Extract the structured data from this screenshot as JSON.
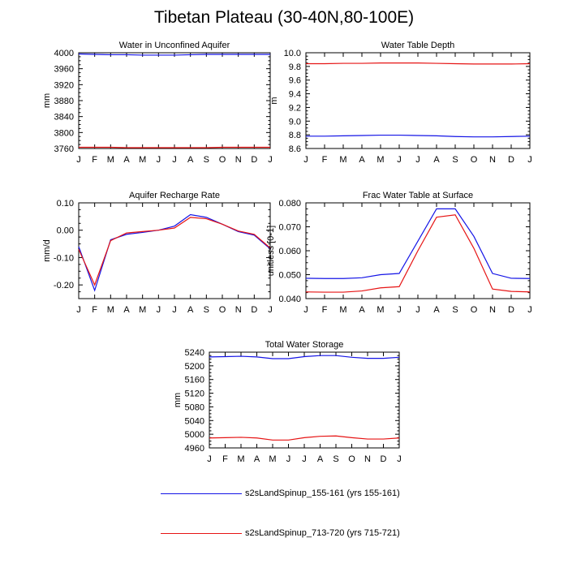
{
  "figure": {
    "title": "Tibetan Plateau (30-40N,80-100E)"
  },
  "colors": {
    "series_1": "#1414e6",
    "series_2": "#e61414",
    "axis": "#000000"
  },
  "legend": [
    {
      "label": "s2sLandSpinup_155-161 (yrs 155-161)",
      "color": "#1414e6"
    },
    {
      "label": "s2sLandSpinup_713-720 (yrs 715-721)",
      "color": "#e61414"
    }
  ],
  "chart_data": [
    {
      "type": "line",
      "title": "Water in Unconfined Aquifer",
      "ylabel": "mm",
      "categories": [
        "J",
        "F",
        "M",
        "A",
        "M",
        "J",
        "J",
        "A",
        "S",
        "O",
        "N",
        "D",
        "J"
      ],
      "ylim": [
        3760,
        4000
      ],
      "yticks": [
        "3760",
        "3800",
        "3840",
        "3880",
        "3920",
        "3960",
        "4000"
      ],
      "series": [
        {
          "name": "s2sLandSpinup_155-161 (yrs 155-161)",
          "color": "#1414e6",
          "values": [
            3997,
            3996,
            3995,
            3995,
            3994,
            3994,
            3994,
            3995,
            3996,
            3996,
            3996,
            3996,
            3996
          ]
        },
        {
          "name": "s2sLandSpinup_713-720 (yrs 715-721)",
          "color": "#e61414",
          "values": [
            3763,
            3763,
            3763,
            3762,
            3762,
            3762,
            3762,
            3762,
            3762,
            3763,
            3763,
            3763,
            3763
          ]
        }
      ]
    },
    {
      "type": "line",
      "title": "Water Table Depth",
      "ylabel": "m",
      "categories": [
        "J",
        "F",
        "M",
        "A",
        "M",
        "J",
        "J",
        "A",
        "S",
        "O",
        "N",
        "D",
        "J"
      ],
      "ylim": [
        8.6,
        10.0
      ],
      "yticks": [
        "8.6",
        "8.8",
        "9.0",
        "9.2",
        "9.4",
        "9.6",
        "9.8",
        "10.0"
      ],
      "series": [
        {
          "name": "s2sLandSpinup_155-161 (yrs 155-161)",
          "color": "#1414e6",
          "values": [
            8.78,
            8.78,
            8.785,
            8.79,
            8.795,
            8.795,
            8.79,
            8.785,
            8.775,
            8.77,
            8.77,
            8.775,
            8.78
          ]
        },
        {
          "name": "s2sLandSpinup_713-720 (yrs 715-721)",
          "color": "#e61414",
          "values": [
            9.84,
            9.84,
            9.845,
            9.845,
            9.85,
            9.85,
            9.85,
            9.845,
            9.84,
            9.835,
            9.835,
            9.835,
            9.84
          ]
        }
      ]
    },
    {
      "type": "line",
      "title": "Aquifer Recharge Rate",
      "ylabel": "mm/d",
      "categories": [
        "J",
        "F",
        "M",
        "A",
        "M",
        "J",
        "J",
        "A",
        "S",
        "O",
        "N",
        "D",
        "J"
      ],
      "ylim": [
        -0.25,
        0.1
      ],
      "yticks": [
        "-0.20",
        "-0.10",
        "0.00",
        "0.10"
      ],
      "ytick_values": [
        -0.2,
        -0.1,
        0.0,
        0.1
      ],
      "series": [
        {
          "name": "s2sLandSpinup_155-161 (yrs 155-161)",
          "color": "#1414e6",
          "values": [
            -0.06,
            -0.22,
            -0.035,
            -0.015,
            -0.008,
            0.0,
            0.015,
            0.057,
            0.047,
            0.022,
            -0.005,
            -0.018,
            -0.068
          ]
        },
        {
          "name": "s2sLandSpinup_713-720 (yrs 715-721)",
          "color": "#e61414",
          "values": [
            -0.07,
            -0.2,
            -0.038,
            -0.01,
            -0.005,
            0.0,
            0.008,
            0.047,
            0.042,
            0.022,
            -0.003,
            -0.015,
            -0.065
          ]
        }
      ]
    },
    {
      "type": "line",
      "title": "Frac Water Table at Surface",
      "ylabel": "unitless [0-1]",
      "categories": [
        "J",
        "F",
        "M",
        "A",
        "M",
        "J",
        "J",
        "A",
        "S",
        "O",
        "N",
        "D",
        "J"
      ],
      "ylim": [
        0.04,
        0.08
      ],
      "yticks": [
        "0.040",
        "0.050",
        "0.060",
        "0.070",
        "0.080"
      ],
      "ytick_values": [
        0.04,
        0.05,
        0.06,
        0.07,
        0.08
      ],
      "series": [
        {
          "name": "s2sLandSpinup_155-161 (yrs 155-161)",
          "color": "#1414e6",
          "values": [
            0.0485,
            0.0484,
            0.0484,
            0.0487,
            0.05,
            0.0505,
            0.064,
            0.0775,
            0.0775,
            0.066,
            0.0505,
            0.0485,
            0.0484
          ]
        },
        {
          "name": "s2sLandSpinup_713-720 (yrs 715-721)",
          "color": "#e61414",
          "values": [
            0.0428,
            0.0427,
            0.0427,
            0.0432,
            0.0445,
            0.045,
            0.06,
            0.074,
            0.075,
            0.061,
            0.044,
            0.043,
            0.0428
          ]
        }
      ]
    },
    {
      "type": "line",
      "title": "Total Water Storage",
      "ylabel": "mm",
      "categories": [
        "J",
        "F",
        "M",
        "A",
        "M",
        "J",
        "J",
        "A",
        "S",
        "O",
        "N",
        "D",
        "J"
      ],
      "ylim": [
        4960,
        5240
      ],
      "yticks": [
        "4960",
        "5000",
        "5040",
        "5080",
        "5120",
        "5160",
        "5200",
        "5240"
      ],
      "series": [
        {
          "name": "s2sLandSpinup_155-161 (yrs 155-161)",
          "color": "#1414e6",
          "values": [
            5226,
            5227,
            5228,
            5226,
            5221,
            5221,
            5227,
            5230,
            5230,
            5225,
            5222,
            5222,
            5225
          ]
        },
        {
          "name": "s2sLandSpinup_713-720 (yrs 715-721)",
          "color": "#e61414",
          "values": [
            4989,
            4990,
            4991,
            4989,
            4983,
            4983,
            4990,
            4994,
            4995,
            4990,
            4986,
            4986,
            4989
          ]
        }
      ]
    }
  ]
}
